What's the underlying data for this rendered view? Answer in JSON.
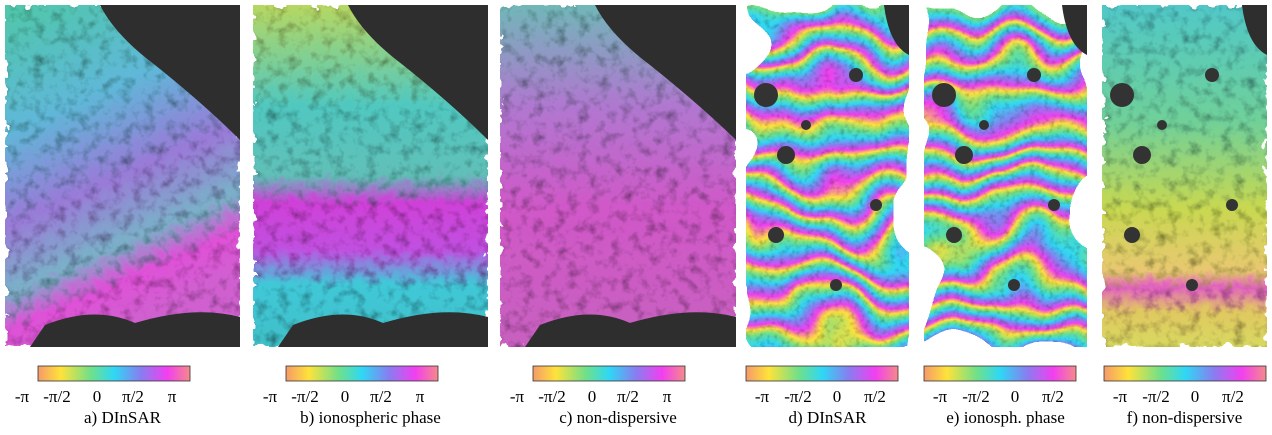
{
  "panels": [
    {
      "caption": "a) DInSAR",
      "colorbar_labels": [
        "-π",
        "-π/2",
        "0",
        "π/2",
        "π"
      ]
    },
    {
      "caption": "b) ionospheric phase",
      "colorbar_labels": [
        "-π",
        "-π/2",
        "0",
        "π/2",
        "π"
      ]
    },
    {
      "caption": "c) non-dispersive",
      "colorbar_labels": [
        "-π",
        "-π/2",
        "0",
        "π/2",
        "π"
      ]
    },
    {
      "caption": "d) DInSAR",
      "colorbar_labels": [
        "-π",
        "-π/2",
        "0",
        "π/2"
      ]
    },
    {
      "caption": "e) ionosph. phase",
      "colorbar_labels": [
        "-π",
        "-π/2",
        "0",
        "π/2"
      ]
    },
    {
      "caption": "f) non-dispersive",
      "colorbar_labels": [
        "-π",
        "-π/2",
        "0",
        "π/2"
      ]
    }
  ]
}
